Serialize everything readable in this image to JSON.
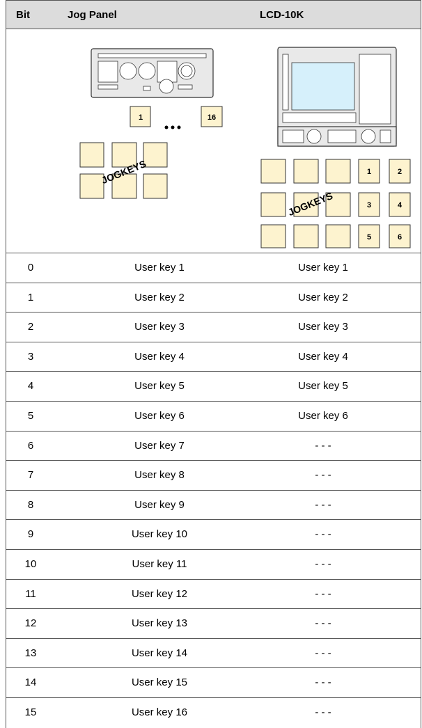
{
  "header": {
    "columns": [
      "Bit",
      "Jog Panel",
      "LCD-10K"
    ]
  },
  "jog_panel_image": {
    "keys": [
      "1",
      "16"
    ],
    "label": "JOGKEYS"
  },
  "lcd_image": {
    "keys": [
      "1",
      "2",
      "3",
      "4",
      "5",
      "6"
    ],
    "label": "JOGKEYS"
  },
  "table": {
    "rows": [
      [
        "0",
        "User key 1",
        "User key 1"
      ],
      [
        "1",
        "User key 2",
        "User key 2"
      ],
      [
        "2",
        "User key 3",
        "User key 3"
      ],
      [
        "3",
        "User key 4",
        "User key 4"
      ],
      [
        "4",
        "User key 5",
        "User key 5"
      ],
      [
        "5",
        "User key 6",
        "User key 6"
      ],
      [
        "6",
        "User key 7",
        "- - -"
      ],
      [
        "7",
        "User key 8",
        "- - -"
      ],
      [
        "8",
        "User key 9",
        "- - -"
      ],
      [
        "9",
        "User key 10",
        "- - -"
      ],
      [
        "10",
        "User key 11",
        "- - -"
      ],
      [
        "11",
        "User key 12",
        "- - -"
      ],
      [
        "12",
        "User key 13",
        "- - -"
      ],
      [
        "13",
        "User key 14",
        "- - -"
      ],
      [
        "14",
        "User key 15",
        "- - -"
      ],
      [
        "15",
        "User key 16",
        "- - -"
      ]
    ]
  }
}
